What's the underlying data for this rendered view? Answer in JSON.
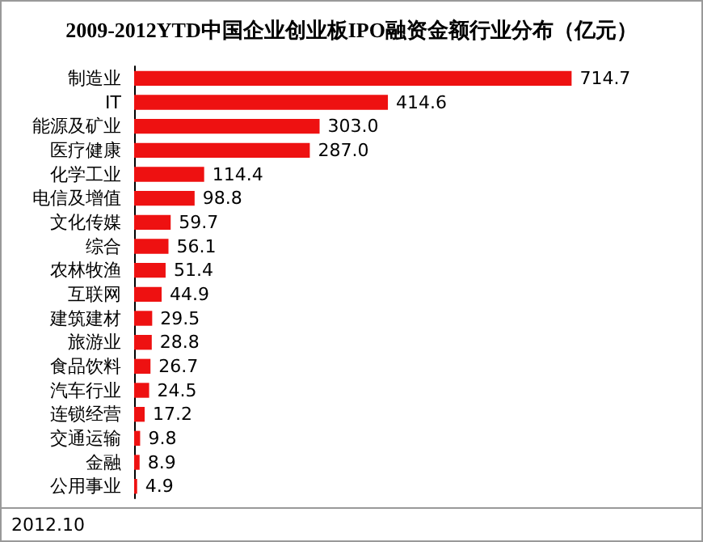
{
  "chart_data": {
    "type": "bar",
    "orientation": "horizontal",
    "title": "2009-2012YTD中国企业创业板IPO融资金额行业分布（亿元）",
    "categories": [
      "制造业",
      "IT",
      "能源及矿业",
      "医疗健康",
      "化学工业",
      "电信及增值",
      "文化传媒",
      "综合",
      "农林牧渔",
      "互联网",
      "建筑建材",
      "旅游业",
      "食品饮料",
      "汽车行业",
      "连锁经营",
      "交通运输",
      "金融",
      "公用事业"
    ],
    "values": [
      714.7,
      414.6,
      303.0,
      287.0,
      114.4,
      98.8,
      59.7,
      56.1,
      51.4,
      44.9,
      29.5,
      28.8,
      26.7,
      24.5,
      17.2,
      9.8,
      8.9,
      4.9
    ],
    "value_labels": [
      "714.7",
      "414.6",
      "303.0",
      "287.0",
      "114.4",
      "98.8",
      "59.7",
      "56.1",
      "51.4",
      "44.9",
      "29.5",
      "28.8",
      "26.7",
      "24.5",
      "17.2",
      "9.8",
      "8.9",
      "4.9"
    ],
    "color": "#ee1111",
    "annotations": [
      "2012.10"
    ]
  }
}
